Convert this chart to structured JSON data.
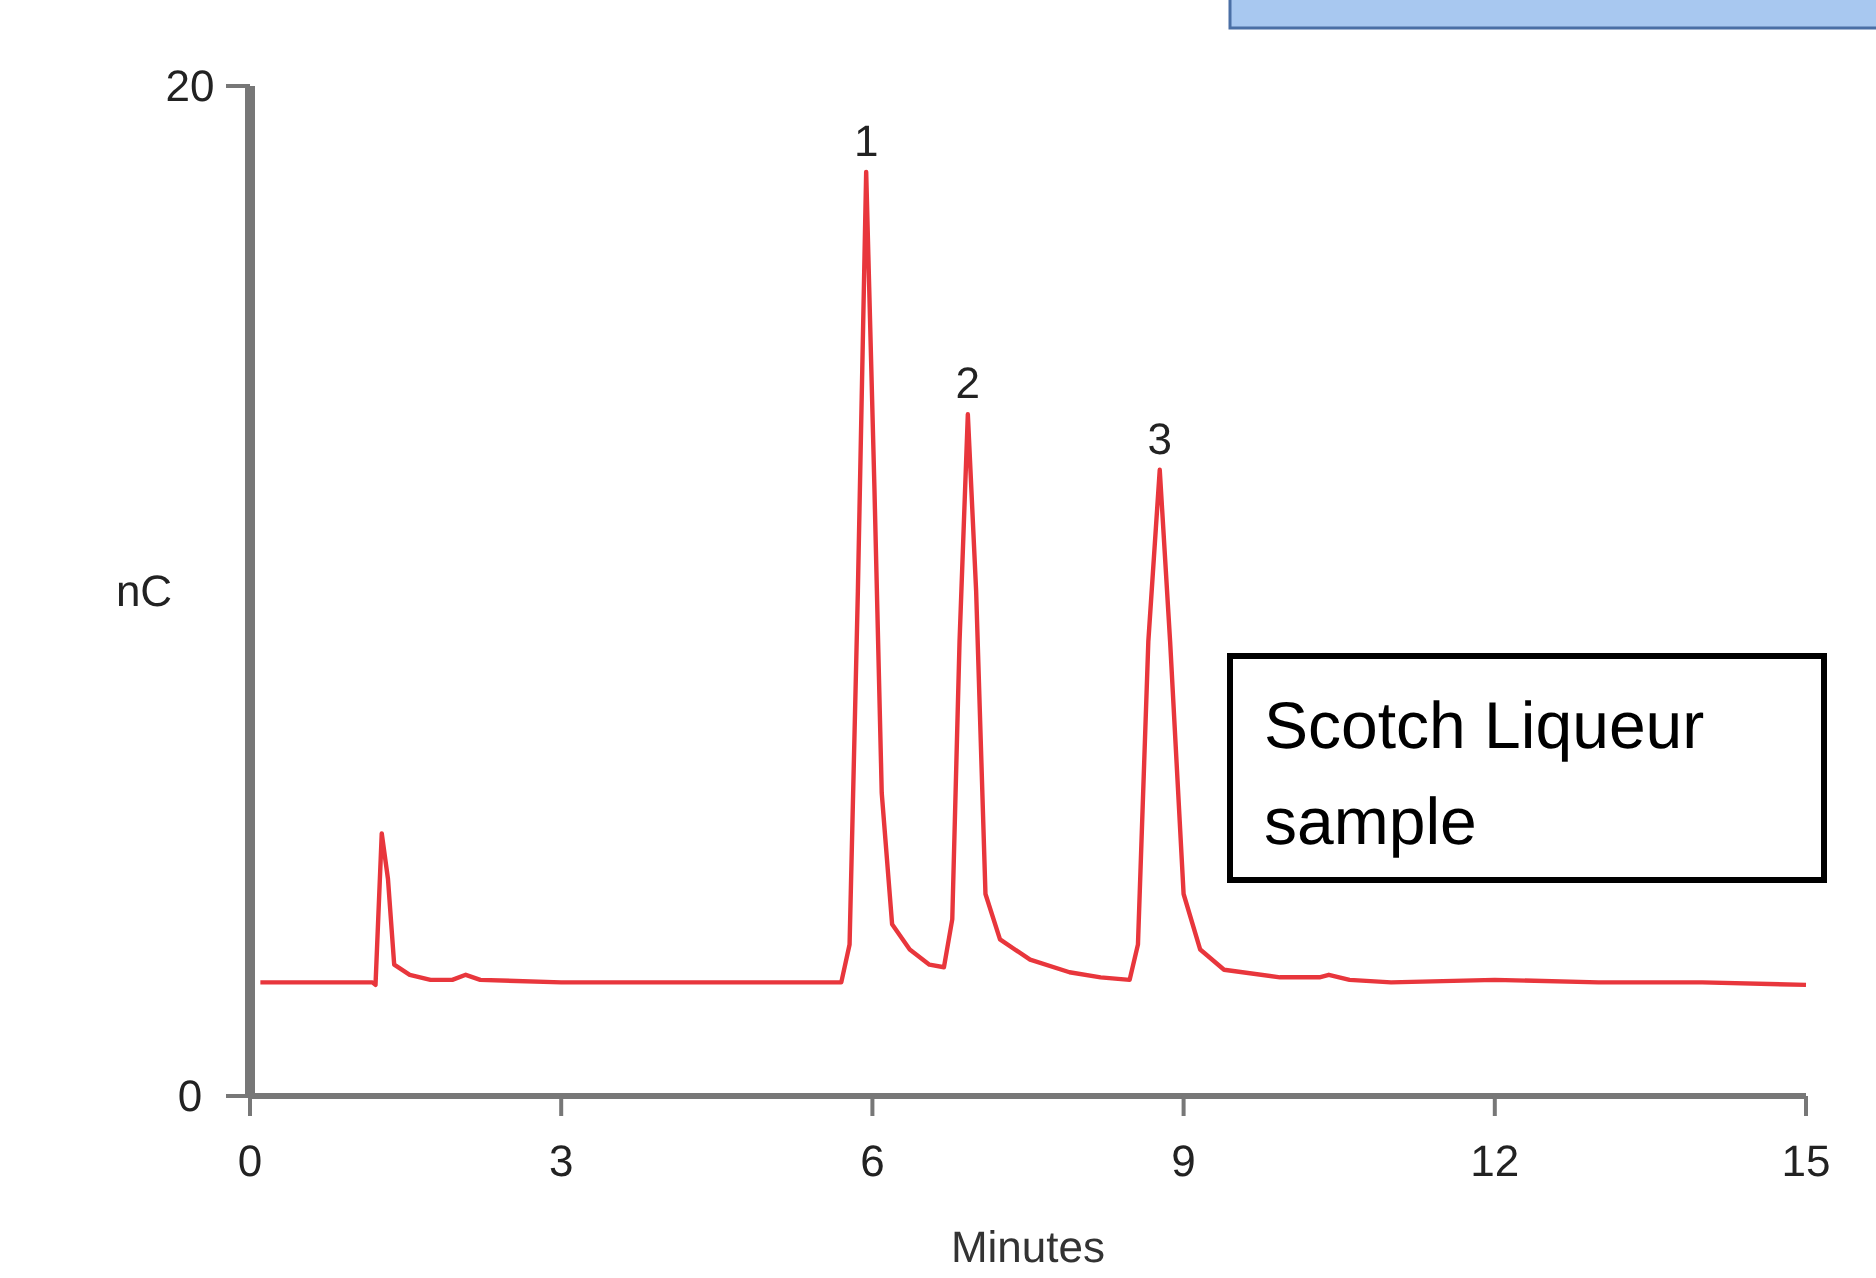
{
  "chart_data": {
    "type": "line",
    "xlabel": "Minutes",
    "ylabel": "nC",
    "xlim": [
      0,
      15
    ],
    "xticks": [
      0,
      3,
      6,
      9,
      12,
      15
    ],
    "ylim": [
      0,
      20
    ],
    "yticks": [
      0,
      20
    ],
    "grid": false,
    "series": [
      {
        "color": "#e8363c",
        "x": [
          0.1,
          1.18,
          1.21,
          1.27,
          1.33,
          1.39,
          1.54,
          1.74,
          1.95,
          2.08,
          2.22,
          3,
          4,
          5,
          5.7,
          5.78,
          5.86,
          5.94,
          6.02,
          6.09,
          6.19,
          6.36,
          6.55,
          6.69,
          6.77,
          6.84,
          6.92,
          7.0,
          7.09,
          7.23,
          7.52,
          7.9,
          8.2,
          8.48,
          8.56,
          8.66,
          8.77,
          8.87,
          9.0,
          9.16,
          9.39,
          9.93,
          10.31,
          10.4,
          10.6,
          11,
          12,
          13,
          14,
          15
        ],
        "values": [
          2.25,
          2.25,
          2.2,
          5.2,
          4.3,
          2.6,
          2.4,
          2.3,
          2.3,
          2.4,
          2.3,
          2.25,
          2.25,
          2.25,
          2.25,
          3,
          10,
          18.3,
          12,
          6,
          3.4,
          2.9,
          2.6,
          2.55,
          3.5,
          9,
          13.5,
          10,
          4,
          3.1,
          2.7,
          2.45,
          2.35,
          2.3,
          3,
          9,
          12.4,
          9,
          4,
          2.9,
          2.5,
          2.35,
          2.35,
          2.4,
          2.3,
          2.25,
          2.3,
          2.25,
          2.25,
          2.2
        ]
      }
    ],
    "annotations": [
      {
        "text": "1",
        "x": 5.94,
        "y": 18.3
      },
      {
        "text": "2",
        "x": 6.92,
        "y": 13.5
      },
      {
        "text": "3",
        "x": 8.77,
        "y": 12.4
      },
      "Scotch Liqueur sample"
    ]
  }
}
